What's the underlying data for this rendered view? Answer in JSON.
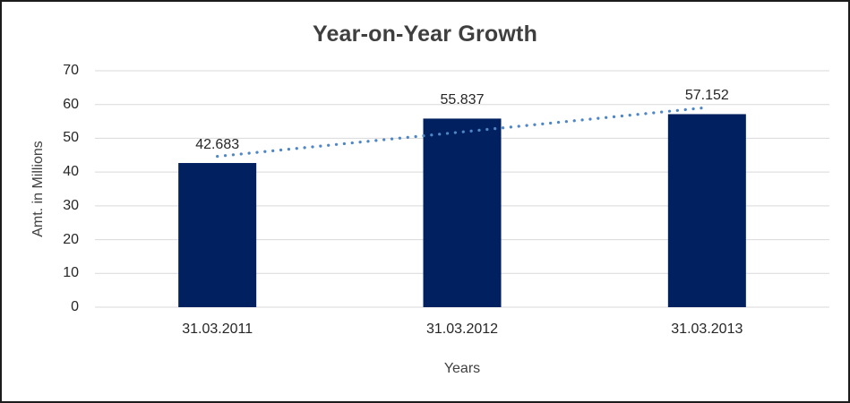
{
  "chart_data": {
    "type": "bar",
    "title": "Year-on-Year Growth",
    "xlabel": "Years",
    "ylabel": "Amt. in Millions",
    "categories": [
      "31.03.2011",
      "31.03.2012",
      "31.03.2013"
    ],
    "values": [
      42.683,
      55.837,
      57.152
    ],
    "data_labels": [
      "42.683",
      "55.837",
      "57.152"
    ],
    "ylim": [
      0,
      70
    ],
    "yticks": [
      0,
      10,
      20,
      30,
      40,
      50,
      60,
      70
    ],
    "grid": true,
    "legend": "none",
    "trendline": {
      "type": "linear",
      "style": "dotted"
    }
  },
  "colors": {
    "bar": "#002060",
    "trendline": "#4f86c6",
    "gridline": "#d9d9d9",
    "title_text": "#3f3f3f",
    "axis_title_text": "#404040",
    "tick_text": "#262626",
    "frame_border": "#1c1c1c",
    "background": "#ffffff"
  }
}
